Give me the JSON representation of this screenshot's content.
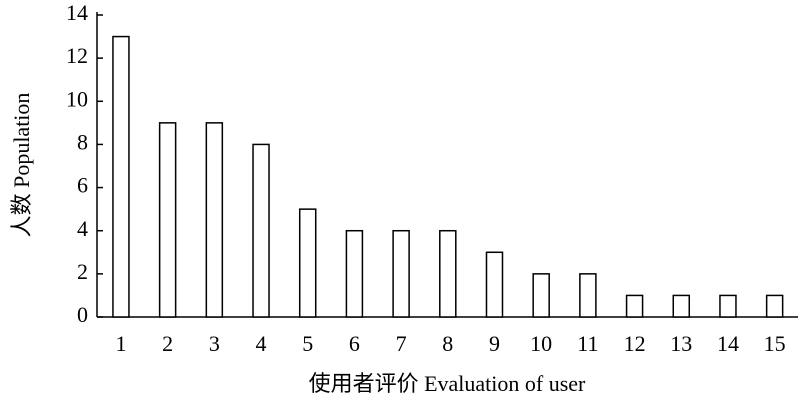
{
  "chart_data": {
    "type": "bar",
    "x_label": "使用者评价 Evaluation of user",
    "y_label": "人数 Population",
    "categories": [
      "1",
      "2",
      "3",
      "4",
      "5",
      "6",
      "7",
      "8",
      "9",
      "10",
      "11",
      "12",
      "13",
      "14",
      "15"
    ],
    "values": [
      13,
      9,
      9,
      8,
      5,
      4,
      4,
      4,
      3,
      2,
      2,
      1,
      1,
      1,
      1
    ],
    "color": "#ffffff",
    "ylim": [
      0,
      14
    ],
    "yticks": [
      0,
      2,
      4,
      6,
      8,
      10,
      12,
      14
    ],
    "grid": false
  }
}
